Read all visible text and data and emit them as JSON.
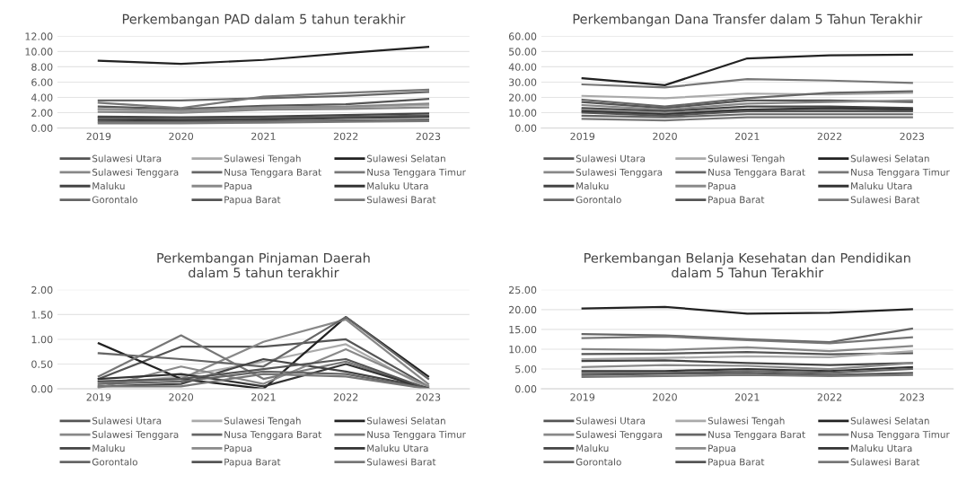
{
  "chart_data": [
    {
      "type": "line",
      "title": "Perkembangan PAD dalam 5 tahun terakhir",
      "categories": [
        "2019",
        "2020",
        "2021",
        "2022",
        "2023"
      ],
      "ylim": [
        0,
        12
      ],
      "yticks": [
        {
          "value": 0,
          "label": "0.00"
        },
        {
          "value": 2,
          "label": "2.00"
        },
        {
          "value": 4,
          "label": "4.00"
        },
        {
          "value": 6,
          "label": "6.00"
        },
        {
          "value": 8,
          "label": "8.00"
        },
        {
          "value": 10,
          "label": "10.00"
        },
        {
          "value": 12,
          "label": "12.00"
        }
      ],
      "grid": "y",
      "legend": "bottom",
      "marker": "none",
      "line_style": "solid",
      "series": [
        {
          "name": "Sulawesi Utara",
          "color": "#555555",
          "values": [
            2.8,
            2.5,
            2.9,
            3.1,
            3.8
          ]
        },
        {
          "name": "Sulawesi Tengah",
          "color": "#aaaaaa",
          "values": [
            2.4,
            2.2,
            2.6,
            2.7,
            3.0
          ]
        },
        {
          "name": "Sulawesi Selatan",
          "color": "#222222",
          "values": [
            8.8,
            8.4,
            8.9,
            9.8,
            10.6
          ]
        },
        {
          "name": "Sulawesi Tenggara",
          "color": "#888888",
          "values": [
            2.1,
            2.0,
            2.4,
            2.5,
            2.7
          ]
        },
        {
          "name": "Nusa Tenggara Barat",
          "color": "#666666",
          "values": [
            3.6,
            3.6,
            3.9,
            4.2,
            4.7
          ]
        },
        {
          "name": "Nusa Tenggara Timur",
          "color": "#777777",
          "values": [
            3.3,
            2.6,
            4.1,
            4.6,
            5.0
          ]
        },
        {
          "name": "Maluku",
          "color": "#444444",
          "values": [
            1.5,
            1.4,
            1.5,
            1.7,
            1.9
          ]
        },
        {
          "name": "Papua",
          "color": "#8a8a8a",
          "values": [
            2.5,
            2.3,
            2.7,
            2.8,
            3.2
          ]
        },
        {
          "name": "Maluku Utara",
          "color": "#333333",
          "values": [
            1.05,
            1.0,
            1.1,
            1.3,
            1.45
          ]
        },
        {
          "name": "Gorontalo",
          "color": "#666666",
          "values": [
            0.8,
            0.8,
            0.9,
            1.0,
            1.1
          ]
        },
        {
          "name": "Papua Barat",
          "color": "#555555",
          "values": [
            1.3,
            1.2,
            1.3,
            1.45,
            1.65
          ]
        },
        {
          "name": "Sulawesi Barat",
          "color": "#777777",
          "values": [
            0.6,
            0.6,
            0.7,
            0.8,
            0.9
          ]
        }
      ]
    },
    {
      "type": "line",
      "title": "Perkembangan Dana Transfer dalam 5 Tahun Terakhir",
      "categories": [
        "2019",
        "2020",
        "2021",
        "2022",
        "2023"
      ],
      "ylim": [
        0,
        60
      ],
      "yticks": [
        {
          "value": 0,
          "label": "0.00"
        },
        {
          "value": 10,
          "label": "10.00"
        },
        {
          "value": 20,
          "label": "20.00"
        },
        {
          "value": 30,
          "label": "30.00"
        },
        {
          "value": 40,
          "label": "40.00"
        },
        {
          "value": 50,
          "label": "50.00"
        },
        {
          "value": 60,
          "label": "60.00"
        }
      ],
      "grid": "y",
      "legend": "bottom",
      "marker": "none",
      "line_style": "solid",
      "series": [
        {
          "name": "Sulawesi Utara",
          "color": "#555555",
          "values": [
            17,
            13,
            18,
            18,
            17
          ]
        },
        {
          "name": "Sulawesi Tengah",
          "color": "#aaaaaa",
          "values": [
            21,
            19.5,
            22.5,
            22,
            23
          ]
        },
        {
          "name": "Sulawesi Selatan",
          "color": "#222222",
          "values": [
            32.5,
            28,
            45.5,
            47.5,
            48
          ]
        },
        {
          "name": "Sulawesi Tenggara",
          "color": "#888888",
          "values": [
            15,
            12,
            16,
            17,
            18
          ]
        },
        {
          "name": "Nusa Tenggara Barat",
          "color": "#666666",
          "values": [
            18.5,
            14,
            19.5,
            23,
            24
          ]
        },
        {
          "name": "Nusa Tenggara Timur",
          "color": "#777777",
          "values": [
            28.5,
            26.5,
            32,
            31,
            29.5
          ]
        },
        {
          "name": "Maluku",
          "color": "#444444",
          "values": [
            13,
            11,
            14,
            14,
            13
          ]
        },
        {
          "name": "Papua",
          "color": "#8a8a8a",
          "values": [
            12,
            10,
            12,
            12,
            12
          ]
        },
        {
          "name": "Maluku Utara",
          "color": "#333333",
          "values": [
            11,
            9,
            12,
            13,
            12
          ]
        },
        {
          "name": "Gorontalo",
          "color": "#666666",
          "values": [
            8,
            7,
            9,
            9,
            9
          ]
        },
        {
          "name": "Papua Barat",
          "color": "#555555",
          "values": [
            10,
            8,
            11,
            11,
            11
          ]
        },
        {
          "name": "Sulawesi Barat",
          "color": "#777777",
          "values": [
            6,
            5,
            7,
            7,
            7
          ]
        }
      ]
    },
    {
      "type": "line",
      "title": "Perkembangan Pinjaman Daerah\ndalam 5 tahun terakhir",
      "categories": [
        "2019",
        "2020",
        "2021",
        "2022",
        "2023"
      ],
      "ylim": [
        0,
        2
      ],
      "yticks": [
        {
          "value": 0,
          "label": "0.00"
        },
        {
          "value": 0.5,
          "label": "0.50"
        },
        {
          "value": 1,
          "label": "1.00"
        },
        {
          "value": 1.5,
          "label": "1.50"
        },
        {
          "value": 2,
          "label": "2.00"
        }
      ],
      "grid": "y",
      "legend": "bottom",
      "marker": "none",
      "line_style": "solid",
      "series": [
        {
          "name": "Sulawesi Utara",
          "color": "#555555",
          "values": [
            0.2,
            0.85,
            0.85,
            1.0,
            0.05
          ]
        },
        {
          "name": "Sulawesi Tengah",
          "color": "#aaaaaa",
          "values": [
            0.1,
            0.25,
            0.55,
            0.9,
            0.0
          ]
        },
        {
          "name": "Sulawesi Selatan",
          "color": "#222222",
          "values": [
            0.92,
            0.2,
            0.0,
            1.45,
            0.25
          ]
        },
        {
          "name": "Sulawesi Tenggara",
          "color": "#888888",
          "values": [
            0.15,
            0.2,
            0.95,
            1.4,
            0.1
          ]
        },
        {
          "name": "Nusa Tenggara Barat",
          "color": "#666666",
          "values": [
            0.72,
            0.6,
            0.45,
            1.45,
            0.2
          ]
        },
        {
          "name": "Nusa Tenggara Timur",
          "color": "#777777",
          "values": [
            0.25,
            1.08,
            0.2,
            0.55,
            0.0
          ]
        },
        {
          "name": "Maluku",
          "color": "#444444",
          "values": [
            0.05,
            0.1,
            0.6,
            0.35,
            0.02
          ]
        },
        {
          "name": "Papua",
          "color": "#8a8a8a",
          "values": [
            0.02,
            0.45,
            0.1,
            0.8,
            0.05
          ]
        },
        {
          "name": "Maluku Utara",
          "color": "#333333",
          "values": [
            0.2,
            0.3,
            0.05,
            0.5,
            0.0
          ]
        },
        {
          "name": "Gorontalo",
          "color": "#666666",
          "values": [
            0.1,
            0.15,
            0.35,
            0.3,
            0.0
          ]
        },
        {
          "name": "Papua Barat",
          "color": "#555555",
          "values": [
            0.15,
            0.2,
            0.4,
            0.6,
            0.0
          ]
        },
        {
          "name": "Sulawesi Barat",
          "color": "#777777",
          "values": [
            0.05,
            0.05,
            0.3,
            0.25,
            0.0
          ]
        }
      ]
    },
    {
      "type": "line",
      "title": "Perkembangan Belanja Kesehatan dan Pendidikan\ndalam 5 Tahun Terakhir",
      "categories": [
        "2019",
        "2020",
        "2021",
        "2022",
        "2023"
      ],
      "ylim": [
        0,
        25
      ],
      "yticks": [
        {
          "value": 0,
          "label": "0.00"
        },
        {
          "value": 5,
          "label": "5.00"
        },
        {
          "value": 10,
          "label": "10.00"
        },
        {
          "value": 15,
          "label": "15.00"
        },
        {
          "value": 20,
          "label": "20.00"
        },
        {
          "value": 25,
          "label": "25.00"
        }
      ],
      "grid": "y",
      "legend": "bottom",
      "marker": "none",
      "line_style": "solid",
      "series": [
        {
          "name": "Sulawesi Utara",
          "color": "#555555",
          "values": [
            8.8,
            8.9,
            9.3,
            8.7,
            9.0
          ]
        },
        {
          "name": "Sulawesi Tengah",
          "color": "#aaaaaa",
          "values": [
            7.5,
            7.8,
            8.2,
            8.0,
            9.5
          ]
        },
        {
          "name": "Sulawesi Selatan",
          "color": "#222222",
          "values": [
            20.3,
            20.7,
            19.0,
            19.2,
            20.1
          ]
        },
        {
          "name": "Sulawesi Tenggara",
          "color": "#888888",
          "values": [
            10.0,
            9.8,
            10.5,
            9.5,
            10.8
          ]
        },
        {
          "name": "Nusa Tenggara Barat",
          "color": "#666666",
          "values": [
            13.8,
            13.5,
            12.5,
            11.8,
            15.2
          ]
        },
        {
          "name": "Nusa Tenggara Timur",
          "color": "#777777",
          "values": [
            12.8,
            13.2,
            12.3,
            11.5,
            13.0
          ]
        },
        {
          "name": "Maluku",
          "color": "#444444",
          "values": [
            7.0,
            7.2,
            6.5,
            6.0,
            6.5
          ]
        },
        {
          "name": "Papua",
          "color": "#8a8a8a",
          "values": [
            5.5,
            6.0,
            5.8,
            5.0,
            6.5
          ]
        },
        {
          "name": "Maluku Utara",
          "color": "#333333",
          "values": [
            4.5,
            4.5,
            5.0,
            4.5,
            5.5
          ]
        },
        {
          "name": "Gorontalo",
          "color": "#666666",
          "values": [
            4.0,
            4.0,
            4.5,
            4.0,
            5.0
          ]
        },
        {
          "name": "Papua Barat",
          "color": "#555555",
          "values": [
            3.5,
            3.8,
            4.0,
            3.5,
            4.0
          ]
        },
        {
          "name": "Sulawesi Barat",
          "color": "#777777",
          "values": [
            3.0,
            3.2,
            3.5,
            3.2,
            3.5
          ]
        }
      ]
    }
  ]
}
